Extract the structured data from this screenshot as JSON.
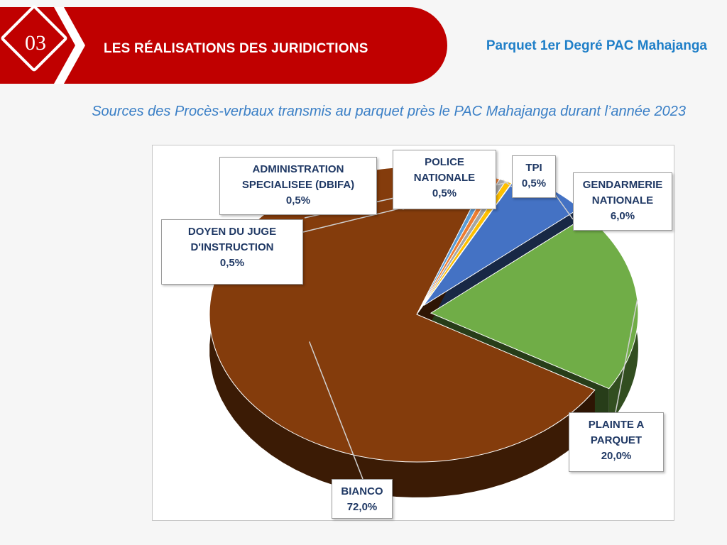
{
  "header": {
    "section_number": "03",
    "title": "LES RÉALISATIONS DES JURIDICTIONS",
    "subtitle": "Parquet 1er Degré PAC Mahajanga"
  },
  "chart_title": "Sources des Procès-verbaux transmis au parquet près le PAC Mahajanga durant l’année 2023",
  "colors": {
    "header_red": "#c00000",
    "subtitle_blue": "#1f7fc8",
    "label_navy": "#1f3864"
  },
  "chart_data": {
    "type": "pie",
    "title": "Sources des Procès-verbaux transmis au parquet près le PAC Mahajanga durant l’année 2023",
    "style": "3d-exploded",
    "slices": [
      {
        "label": "ADMINISTRATION SPECIALISEE (DBIFA)",
        "lines": [
          "ADMINISTRATION",
          "SPECIALISEE (DBIFA)"
        ],
        "value": 0.5,
        "pct": "0,5%",
        "color": "#5b9bd5"
      },
      {
        "label": "POLICE NATIONALE",
        "lines": [
          "POLICE",
          "NATIONALE"
        ],
        "value": 0.5,
        "pct": "0,5%",
        "color": "#ed7d31"
      },
      {
        "label": "TPI",
        "lines": [
          "TPI"
        ],
        "value": 0.5,
        "pct": "0,5%",
        "color": "#a5a5a5"
      },
      {
        "label": "DOYEN DU JUGE D'INSTRUCTION",
        "lines": [
          "DOYEN DU JUGE",
          "D'INSTRUCTION"
        ],
        "value": 0.5,
        "pct": "0,5%",
        "color": "#ffc000"
      },
      {
        "label": "GENDARMERIE NATIONALE",
        "lines": [
          "GENDARMERIE",
          "NATIONALE"
        ],
        "value": 6.0,
        "pct": "6,0%",
        "color": "#4472c4"
      },
      {
        "label": "PLAINTE A PARQUET",
        "lines": [
          "PLAINTE A",
          "PARQUET"
        ],
        "value": 20.0,
        "pct": "20,0%",
        "color": "#70ad47"
      },
      {
        "label": "BIANCO",
        "lines": [
          "BIANCO"
        ],
        "value": 72.0,
        "pct": "72,0%",
        "color": "#843c0c"
      }
    ]
  }
}
